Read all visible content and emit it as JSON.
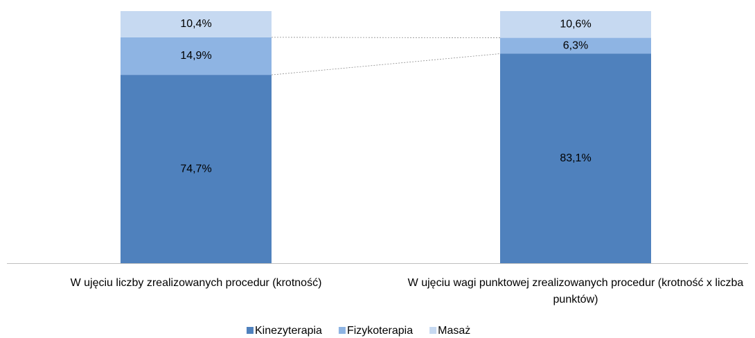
{
  "chart_data": {
    "type": "stacked-bar",
    "categories": [
      "W ujęciu liczby zrealizowanych procedur (krotność)",
      "W ujęciu wagi punktowej zrealizowanych procedur (krotność x liczba punktów)"
    ],
    "series": [
      {
        "name": "Kinezyterapia",
        "color": "#4f81bd",
        "values": [
          74.7,
          83.1
        ],
        "value_labels": [
          "74,7%",
          "83,1%"
        ]
      },
      {
        "name": "Fizykoterapia",
        "color": "#8eb4e3",
        "values": [
          14.9,
          6.3
        ],
        "value_labels": [
          "14,9%",
          "6,3%"
        ]
      },
      {
        "name": "Masaż",
        "color": "#c6d9f1",
        "values": [
          10.4,
          10.6
        ],
        "value_labels": [
          "10,4%",
          "10,6%"
        ]
      }
    ],
    "legend": "bottom"
  }
}
